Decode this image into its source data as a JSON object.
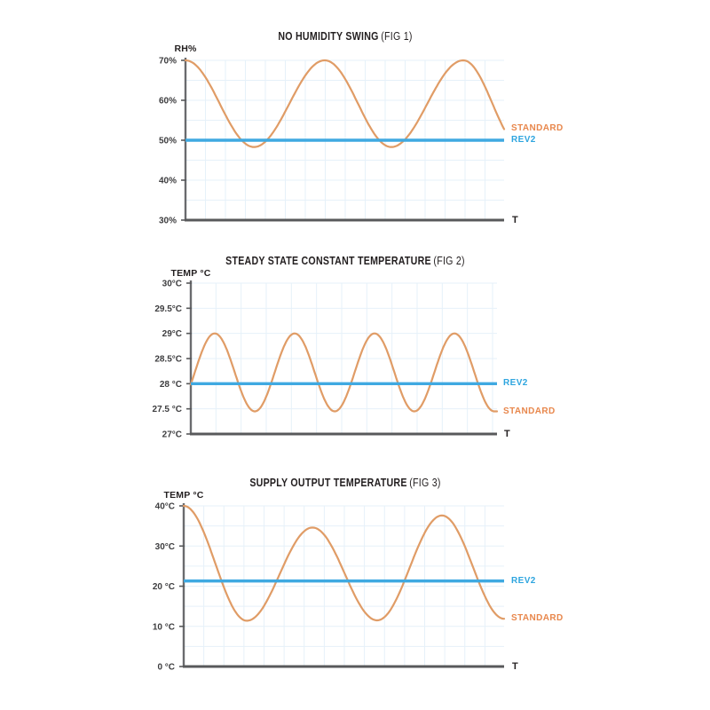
{
  "page": {
    "background": "#ffffff"
  },
  "colors": {
    "standard_curve_orange": "#e09c66",
    "standard_label_orange": "#e8874c",
    "rev2_blue": "#3fa9e1",
    "axis_gray": "#58595b",
    "grid_light_blue": "#e6f1f9",
    "title_dark": "#231f20"
  },
  "chart_data": [
    {
      "type": "line",
      "title": "NO HUMIDITY SWING",
      "fig": "(FIG 1)",
      "ylabel": "RH%",
      "xlabel": "T",
      "ylim": [
        30,
        70
      ],
      "grid": "on",
      "legend_position": "right-of-plot",
      "yticks": [
        {
          "value": 70,
          "label": "70%"
        },
        {
          "value": 60,
          "label": "60%"
        },
        {
          "value": 50,
          "label": "50%"
        },
        {
          "value": 40,
          "label": "40%"
        },
        {
          "value": 30,
          "label": "30%"
        }
      ],
      "series": [
        {
          "name": "STANDARD",
          "shape": "wave",
          "color": "#e09c66",
          "keypoints": [
            {
              "t": 0.0,
              "v": 70.0
            },
            {
              "t": 0.215,
              "v": 48.3
            },
            {
              "t": 0.437,
              "v": 70.0
            },
            {
              "t": 0.646,
              "v": 48.3
            },
            {
              "t": 0.872,
              "v": 70.0
            },
            {
              "t": 1.055,
              "v": 48.3
            }
          ]
        },
        {
          "name": "REV2",
          "shape": "constant",
          "color": "#3fa9e1",
          "value": 50
        }
      ]
    },
    {
      "type": "line",
      "title": "STEADY STATE CONSTANT TEMPERATURE",
      "fig": "(FIG 2)",
      "ylabel": "TEMP °C",
      "xlabel": "T",
      "ylim": [
        27,
        30
      ],
      "grid": "on",
      "legend_position": "right-of-plot",
      "yticks": [
        {
          "value": 30,
          "label": "30°C"
        },
        {
          "value": 29.5,
          "label": "29.5°C"
        },
        {
          "value": 29,
          "label": "29°C"
        },
        {
          "value": 28.5,
          "label": "28.5°C"
        },
        {
          "value": 28,
          "label": "28 °C"
        },
        {
          "value": 27.5,
          "label": "27.5 °C"
        },
        {
          "value": 27,
          "label": "27°C"
        }
      ],
      "series": [
        {
          "name": "STANDARD",
          "shape": "wave",
          "color": "#e09c66",
          "keypoints": [
            {
              "t": -0.052,
              "v": 27.45
            },
            {
              "t": 0.078,
              "v": 29.0
            },
            {
              "t": 0.209,
              "v": 27.45
            },
            {
              "t": 0.339,
              "v": 29.0
            },
            {
              "t": 0.47,
              "v": 27.45
            },
            {
              "t": 0.6,
              "v": 29.0
            },
            {
              "t": 0.73,
              "v": 27.45
            },
            {
              "t": 0.861,
              "v": 29.0
            },
            {
              "t": 0.991,
              "v": 27.45
            }
          ]
        },
        {
          "name": "REV2",
          "shape": "constant",
          "color": "#3fa9e1",
          "value": 28
        }
      ]
    },
    {
      "type": "line",
      "title": "SUPPLY OUTPUT TEMPERATURE",
      "fig": "(FIG 3)",
      "ylabel": "TEMP °C",
      "xlabel": "T",
      "ylim": [
        0,
        40
      ],
      "grid": "on",
      "legend_position": "right-of-plot",
      "yticks": [
        {
          "value": 40,
          "label": "40°C"
        },
        {
          "value": 30,
          "label": "30°C"
        },
        {
          "value": 20,
          "label": "20 °C"
        },
        {
          "value": 10,
          "label": "10 °C"
        },
        {
          "value": 0,
          "label": "0 °C"
        }
      ],
      "series": [
        {
          "name": "STANDARD",
          "shape": "wave",
          "color": "#e09c66",
          "keypoints": [
            {
              "t": 0.0,
              "v": 40.0
            },
            {
              "t": 0.197,
              "v": 11.4
            },
            {
              "t": 0.402,
              "v": 34.6
            },
            {
              "t": 0.604,
              "v": 11.5
            },
            {
              "t": 0.806,
              "v": 37.6
            },
            {
              "t": 1.0,
              "v": 11.9
            }
          ]
        },
        {
          "name": "REV2",
          "shape": "constant",
          "color": "#3fa9e1",
          "value": 21.3
        }
      ]
    }
  ]
}
